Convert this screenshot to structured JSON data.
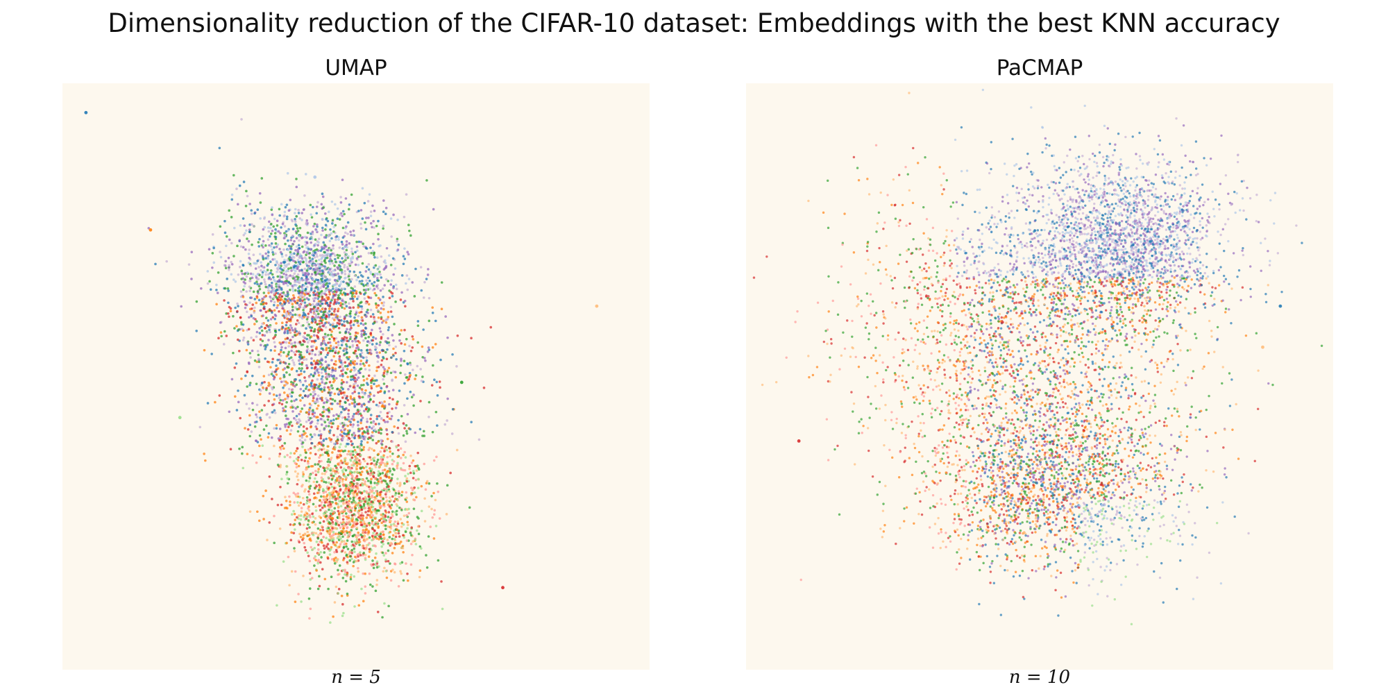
{
  "figure": {
    "title": "Dimensionality reduction of the CIFAR-10 dataset: Embeddings with the best KNN accuracy"
  },
  "colors": {
    "plot_background": "#fdf8ee",
    "class_palette": [
      "#1f77b4",
      "#aec7e8",
      "#ff7f0e",
      "#ffbb78",
      "#2ca02c",
      "#98df8a",
      "#d62728",
      "#ff9896",
      "#9467bd",
      "#c5b0d5"
    ]
  },
  "chart_data": [
    {
      "type": "scatter",
      "title": "UMAP",
      "caption": "n = 5",
      "xlabel": "",
      "ylabel": "",
      "axes": "hidden",
      "grid": false,
      "legend": "none",
      "notes": "Approximately 10,000 embedded samples colored by CIFAR-10 class; points form one large elongated cluster with a few small outlier groups.",
      "xlim": [
        0,
        1
      ],
      "ylim": [
        0,
        1
      ],
      "series": [
        {
          "values": [
            {
              "x": 0.42,
              "y": 0.67,
              "density": "high"
            },
            {
              "x": 0.46,
              "y": 0.5,
              "density": "high"
            },
            {
              "x": 0.5,
              "y": 0.28,
              "density": "medium"
            }
          ]
        }
      ],
      "outliers": [
        {
          "x": 0.04,
          "y": 0.95
        },
        {
          "x": 0.43,
          "y": 0.84
        },
        {
          "x": 0.15,
          "y": 0.75
        },
        {
          "x": 0.91,
          "y": 0.62
        },
        {
          "x": 0.68,
          "y": 0.49
        },
        {
          "x": 0.2,
          "y": 0.43
        },
        {
          "x": 0.75,
          "y": 0.14
        }
      ]
    },
    {
      "type": "scatter",
      "title": "PaCMAP",
      "caption": "n = 10",
      "xlabel": "",
      "ylabel": "",
      "axes": "hidden",
      "grid": false,
      "legend": "none",
      "notes": "Approximately 10,000 embedded samples colored by CIFAR-10 class; points form one broad roughly convex cloud with a few sparse edge outliers.",
      "xlim": [
        0,
        1
      ],
      "ylim": [
        0,
        1
      ],
      "series": [
        {
          "values": [
            {
              "x": 0.47,
              "y": 0.58,
              "density": "high"
            },
            {
              "x": 0.64,
              "y": 0.73,
              "density": "medium"
            },
            {
              "x": 0.52,
              "y": 0.32,
              "density": "medium"
            }
          ]
        }
      ],
      "outliers": [
        {
          "x": 0.91,
          "y": 0.62
        },
        {
          "x": 0.88,
          "y": 0.55
        },
        {
          "x": 0.09,
          "y": 0.39
        }
      ]
    }
  ]
}
